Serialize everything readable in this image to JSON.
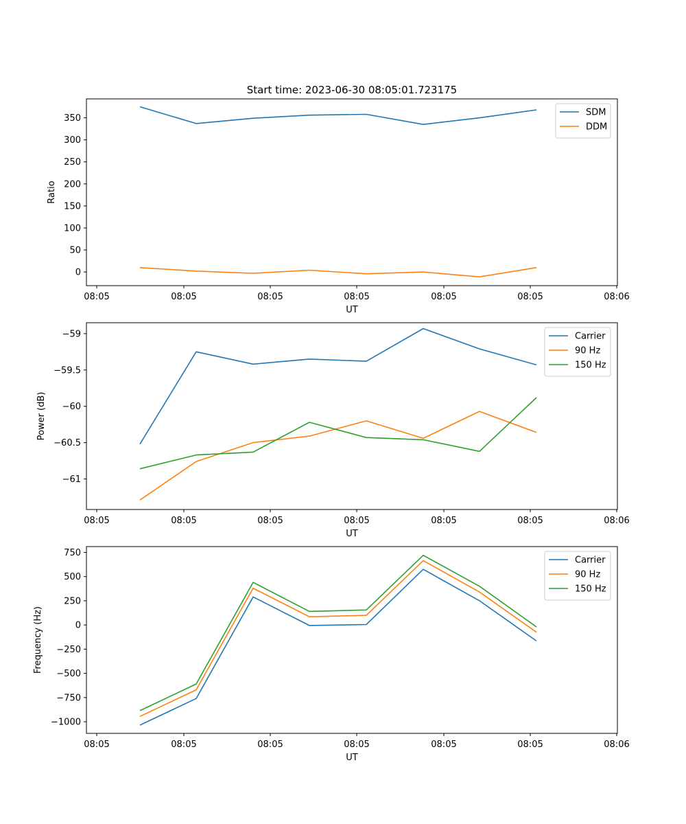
{
  "title": "Start time: 2023-06-30 08:05:01.723175",
  "colors": {
    "blue": "#1f77b4",
    "orange": "#ff7f0e",
    "green": "#2ca02c"
  },
  "chart_data": [
    {
      "type": "line",
      "xlabel": "UT",
      "ylabel": "Ratio",
      "xticks": [
        "08:05",
        "08:05",
        "08:05",
        "08:05",
        "08:05",
        "08:05",
        "08:06"
      ],
      "yticks": [
        0,
        50,
        100,
        150,
        200,
        250,
        300,
        350
      ],
      "ylim": [
        -31,
        393
      ],
      "legend": "upper-right",
      "series": [
        {
          "name": "SDM",
          "color": "#1f77b4",
          "values": [
            375,
            337,
            349,
            356,
            358,
            335,
            350,
            368
          ]
        },
        {
          "name": "DDM",
          "color": "#ff7f0e",
          "values": [
            10,
            2,
            -3,
            4,
            -4,
            0,
            -11,
            10
          ]
        }
      ]
    },
    {
      "type": "line",
      "xlabel": "UT",
      "ylabel": "Power (dB)",
      "xticks": [
        "08:05",
        "08:05",
        "08:05",
        "08:05",
        "08:05",
        "08:05",
        "08:06"
      ],
      "yticks": [
        -59.0,
        -59.5,
        -60.0,
        -60.5,
        -61.0
      ],
      "ylim": [
        -61.42,
        -58.85
      ],
      "legend": "upper-right",
      "series": [
        {
          "name": "Carrier",
          "color": "#1f77b4",
          "values": [
            -60.52,
            -59.25,
            -59.42,
            -59.35,
            -59.38,
            -58.93,
            -59.21,
            -59.43
          ]
        },
        {
          "name": "90 Hz",
          "color": "#ff7f0e",
          "values": [
            -61.29,
            -60.76,
            -60.5,
            -60.41,
            -60.2,
            -60.44,
            -60.07,
            -60.36
          ]
        },
        {
          "name": "150 Hz",
          "color": "#2ca02c",
          "values": [
            -60.86,
            -60.67,
            -60.63,
            -60.22,
            -60.43,
            -60.46,
            -60.62,
            -59.88
          ]
        }
      ]
    },
    {
      "type": "line",
      "xlabel": "UT",
      "ylabel": "Frequency (Hz)",
      "xticks": [
        "08:05",
        "08:05",
        "08:05",
        "08:05",
        "08:05",
        "08:05",
        "08:06"
      ],
      "yticks": [
        750,
        500,
        250,
        0,
        -250,
        -500,
        -750,
        -1000
      ],
      "ylim": [
        -1120,
        810
      ],
      "legend": "upper-right",
      "series": [
        {
          "name": "Carrier",
          "color": "#1f77b4",
          "values": [
            -1035,
            -760,
            290,
            -5,
            5,
            575,
            250,
            -165
          ]
        },
        {
          "name": "90 Hz",
          "color": "#ff7f0e",
          "values": [
            -945,
            -670,
            380,
            85,
            100,
            665,
            340,
            -75
          ]
        },
        {
          "name": "150 Hz",
          "color": "#2ca02c",
          "values": [
            -885,
            -610,
            440,
            140,
            155,
            720,
            400,
            -20
          ]
        }
      ]
    }
  ]
}
